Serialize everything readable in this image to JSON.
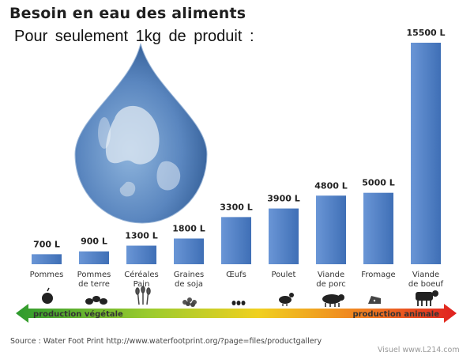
{
  "chart_data": {
    "type": "bar",
    "title": "Besoin en eau des aliments",
    "subtitle": "Pour seulement 1kg de produit :",
    "categories": [
      [
        "Pommes"
      ],
      [
        "Pommes",
        "de terre"
      ],
      [
        "Céréales",
        "Pain"
      ],
      [
        "Graines",
        "de soja"
      ],
      [
        "Œufs"
      ],
      [
        "Poulet"
      ],
      [
        "Viande",
        "de porc"
      ],
      [
        "Fromage"
      ],
      [
        "Viande",
        "de boeuf"
      ]
    ],
    "values": [
      700,
      900,
      1300,
      1800,
      3300,
      3900,
      4800,
      5000,
      15500
    ],
    "value_labels": [
      "700 L",
      "900 L",
      "1300 L",
      "1800 L",
      "3300 L",
      "3900 L",
      "4800 L",
      "5000 L",
      "15500 L"
    ],
    "ylim": [
      0,
      15500
    ],
    "grid": false,
    "bar_color": "#4f7fc6"
  },
  "arrow": {
    "left_label": "production végétale",
    "right_label": "production animale",
    "gradient": [
      "#2e9a2e",
      "#9acb2e",
      "#f0d020",
      "#f07a20",
      "#e02020"
    ]
  },
  "category_icons": [
    "apple-icon",
    "potatoes-icon",
    "wheat-icon",
    "soybean-icon",
    "eggs-icon",
    "chicken-icon",
    "pig-icon",
    "cheese-icon",
    "cow-icon"
  ],
  "source": "Source : Water Foot Print http://www.waterfootprint.org/?page=files/productgallery",
  "credit": "Visuel www.L214.com"
}
